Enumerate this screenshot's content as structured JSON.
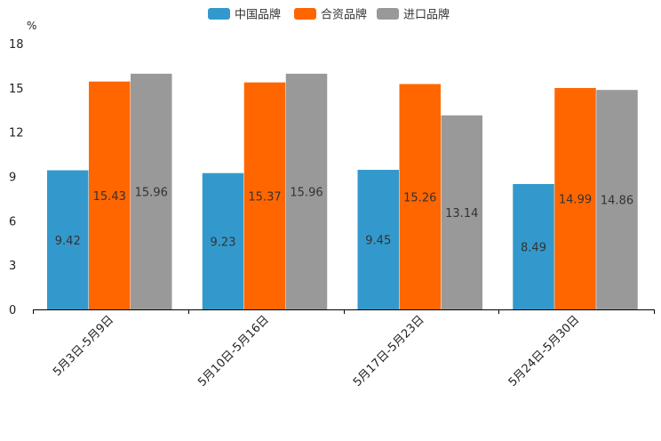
{
  "chart_data": {
    "type": "bar",
    "title": "",
    "xlabel": "",
    "ylabel": "%",
    "ylim": [
      0,
      18
    ],
    "yticks": [
      0,
      3,
      6,
      9,
      12,
      15,
      18
    ],
    "legend_position": "top-center",
    "categories": [
      "5月3日-5月9日",
      "5月10日-5月16日",
      "5月17日-5月23日",
      "5月24日-5月30日"
    ],
    "series": [
      {
        "name": "中国品牌",
        "color": "#3399cc",
        "values": [
          9.42,
          9.23,
          9.45,
          8.49
        ]
      },
      {
        "name": "合资品牌",
        "color": "#ff6600",
        "values": [
          15.43,
          15.37,
          15.26,
          14.99
        ]
      },
      {
        "name": "进口品牌",
        "color": "#999999",
        "values": [
          15.96,
          15.96,
          13.14,
          14.86
        ]
      }
    ]
  }
}
